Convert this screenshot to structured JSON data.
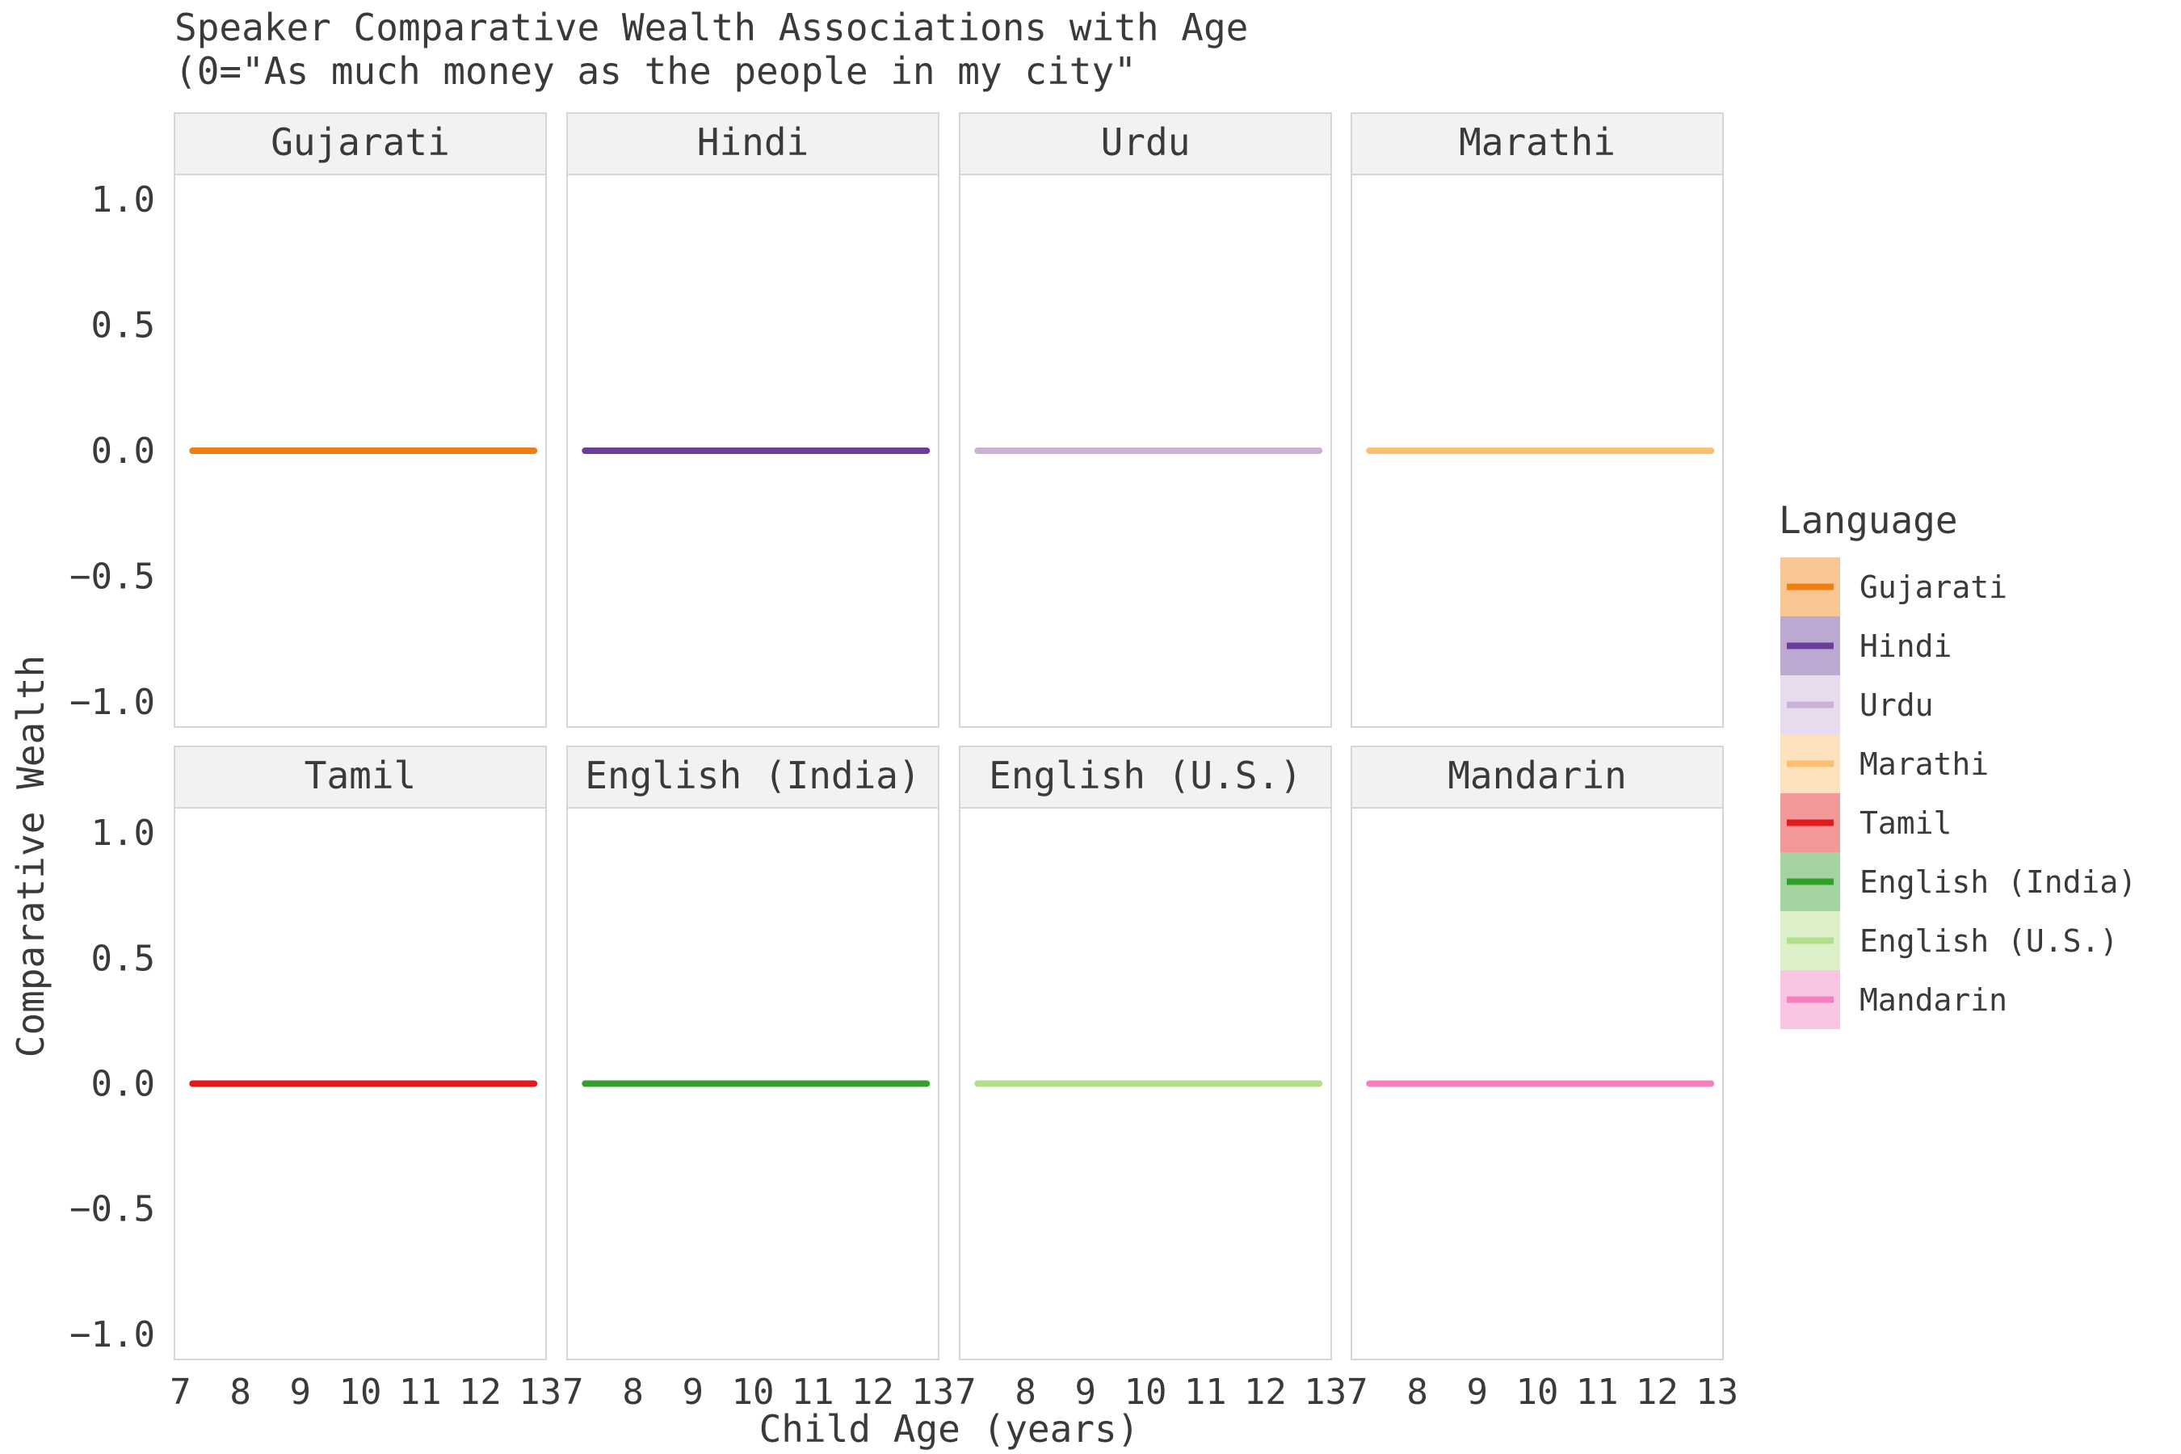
{
  "chart_data": {
    "type": "line",
    "title": "Speaker Comparative Wealth Associations with Age",
    "subtitle": "(0=\"As much money as the people in my city\"",
    "xlabel": "Child Age (years)",
    "ylabel": "Comparative Wealth",
    "xlim": [
      6.9,
      13.1
    ],
    "ylim": [
      -1.1,
      1.1
    ],
    "x_ticks": [
      7,
      8,
      9,
      10,
      11,
      12,
      13
    ],
    "y_ticks": [
      1.0,
      0.5,
      0.0,
      -0.5,
      -1.0
    ],
    "y_tick_labels": [
      "1.0",
      "0.5",
      "0.0",
      "−0.5",
      "−1.0"
    ],
    "legend_title": "Language",
    "legend_position": "right",
    "facets": [
      {
        "name": "Gujarati",
        "color": "#f07f12",
        "x": [
          7.2,
          12.9
        ],
        "values": [
          0,
          0
        ]
      },
      {
        "name": "Hindi",
        "color": "#6a3d9a",
        "x": [
          7.2,
          12.9
        ],
        "values": [
          0,
          0
        ]
      },
      {
        "name": "Urdu",
        "color": "#cab2d6",
        "x": [
          7.2,
          12.9
        ],
        "values": [
          0,
          0
        ]
      },
      {
        "name": "Marathi",
        "color": "#fdbf6f",
        "x": [
          7.2,
          12.9
        ],
        "values": [
          0,
          0
        ]
      },
      {
        "name": "Tamil",
        "color": "#e31a1c",
        "x": [
          7.2,
          12.9
        ],
        "values": [
          0,
          0
        ]
      },
      {
        "name": "English (India)",
        "color": "#33a02c",
        "x": [
          7.2,
          12.9
        ],
        "values": [
          0,
          0
        ]
      },
      {
        "name": "English (U.S.)",
        "color": "#b2df8a",
        "x": [
          7.2,
          12.9
        ],
        "values": [
          0,
          0
        ]
      },
      {
        "name": "Mandarin",
        "color": "#f57fbf",
        "x": [
          7.2,
          12.9
        ],
        "values": [
          0,
          0
        ]
      }
    ]
  }
}
